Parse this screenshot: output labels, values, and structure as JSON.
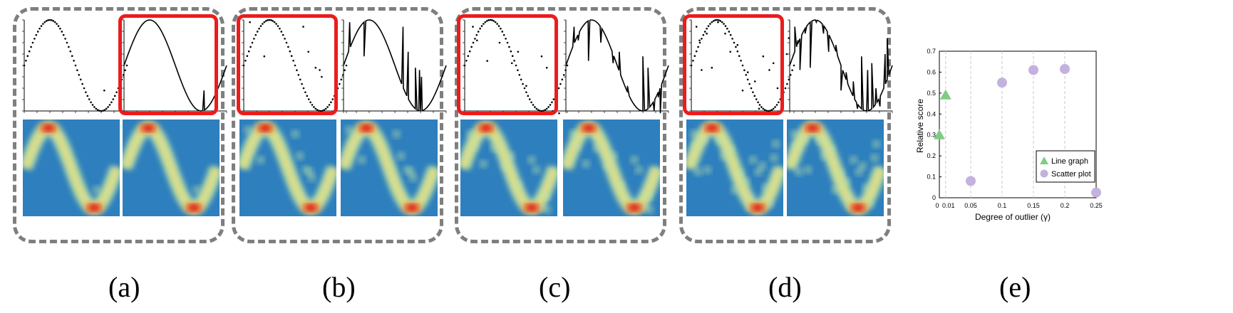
{
  "subfigures": [
    {
      "id": "a",
      "label": "(a)",
      "highlight": "line",
      "outliers": [
        [
          0.78,
          -0.55
        ]
      ]
    },
    {
      "id": "b",
      "label": "(b)",
      "highlight": "scatter",
      "outliers": [
        [
          0.06,
          0.95
        ],
        [
          0.2,
          0.2
        ],
        [
          0.58,
          0.85
        ],
        [
          0.63,
          0.3
        ],
        [
          0.7,
          -0.05
        ],
        [
          0.74,
          -0.1
        ],
        [
          0.76,
          -0.25
        ]
      ]
    },
    {
      "id": "c",
      "label": "(c)",
      "highlight": "scatter",
      "outliers": [
        [
          0.08,
          0.85
        ],
        [
          0.12,
          0.55
        ],
        [
          0.22,
          0.1
        ],
        [
          0.34,
          0.5
        ],
        [
          0.46,
          0.05
        ],
        [
          0.52,
          0.3
        ],
        [
          0.6,
          -0.45
        ],
        [
          0.75,
          0.2
        ],
        [
          0.8,
          -0.05
        ],
        [
          0.86,
          -1.0
        ],
        [
          0.9,
          -0.7
        ],
        [
          0.92,
          -1.05
        ]
      ]
    },
    {
      "id": "d",
      "label": "(d)",
      "highlight": "scatter",
      "outliers": [
        [
          0.05,
          0.85
        ],
        [
          0.08,
          0.55
        ],
        [
          0.1,
          -0.1
        ],
        [
          0.15,
          0.7
        ],
        [
          0.2,
          -0.05
        ],
        [
          0.26,
          0.95
        ],
        [
          0.33,
          0.7
        ],
        [
          0.38,
          0.3
        ],
        [
          0.45,
          0.45
        ],
        [
          0.5,
          -0.55
        ],
        [
          0.55,
          -0.15
        ],
        [
          0.62,
          -0.35
        ],
        [
          0.66,
          -0.95
        ],
        [
          0.7,
          0.2
        ],
        [
          0.76,
          -0.1
        ],
        [
          0.8,
          0.05
        ],
        [
          0.84,
          -0.5
        ],
        [
          0.88,
          -0.9
        ],
        [
          0.93,
          0.25
        ],
        [
          0.95,
          0.6
        ]
      ]
    }
  ],
  "colors": {
    "highlight": "#ec1c1c",
    "dashed_border": "#7f7f7f",
    "heat_background": "#2d7fbd",
    "line_marker": "#7fcc84",
    "scatter_marker": "#c3b1de"
  },
  "chart_data": {
    "type": "scatter",
    "label": "(e)",
    "xlabel": "Degree of outlier (γ)",
    "ylabel": "Relative score",
    "xlim": [
      0,
      0.25
    ],
    "ylim": [
      0,
      0.7
    ],
    "xticks": [
      "0",
      "0.01",
      "0.05",
      "0.1",
      "0.15",
      "0.2",
      "0.25"
    ],
    "yticks": [
      "0",
      "0.1",
      "0.2",
      "0.3",
      "0.4",
      "0.5",
      "0.6",
      "0.7"
    ],
    "legend_position": "bottom-right",
    "grid": "vertical dashed",
    "series": [
      {
        "name": "Line graph",
        "marker": "triangle",
        "color": "#7fcc84",
        "points": [
          [
            0,
            0.3
          ],
          [
            0.01,
            0.49
          ]
        ]
      },
      {
        "name": "Scatter plot",
        "marker": "circle",
        "color": "#c3b1de",
        "points": [
          [
            0.05,
            0.08
          ],
          [
            0.1,
            0.55
          ],
          [
            0.15,
            0.61
          ],
          [
            0.2,
            0.615
          ],
          [
            0.25,
            0.025
          ]
        ]
      }
    ]
  }
}
